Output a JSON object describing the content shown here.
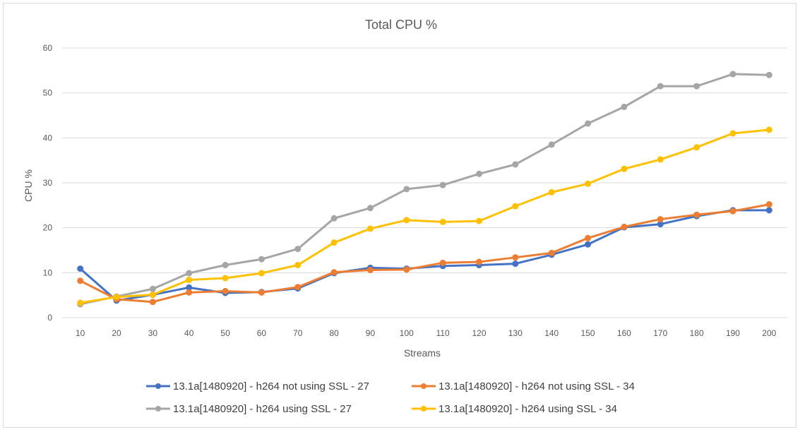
{
  "chart_data": {
    "type": "line",
    "title": "Total CPU %",
    "xlabel": "Streams",
    "ylabel": "CPU %",
    "ylim": [
      0,
      60
    ],
    "yticks": [
      0,
      10,
      20,
      30,
      40,
      50,
      60
    ],
    "grid": true,
    "legend_position": "bottom",
    "categories": [
      "10",
      "20",
      "30",
      "40",
      "50",
      "60",
      "70",
      "80",
      "90",
      "100",
      "110",
      "120",
      "130",
      "140",
      "150",
      "160",
      "170",
      "180",
      "190",
      "200"
    ],
    "series": [
      {
        "name": "13.1a[1480920] - h264 not using SSL - 27",
        "color": "#4472C4",
        "values": [
          10.9,
          3.8,
          5.1,
          6.7,
          5.5,
          5.7,
          6.5,
          9.9,
          11.1,
          10.9,
          11.5,
          11.7,
          12.0,
          14.0,
          16.3,
          20.1,
          20.8,
          22.6,
          23.9,
          23.9
        ]
      },
      {
        "name": "13.1a[1480920] - h264 not using SSL - 34",
        "color": "#ED7D31",
        "values": [
          8.2,
          4.1,
          3.5,
          5.6,
          5.9,
          5.6,
          6.8,
          10.1,
          10.6,
          10.7,
          12.2,
          12.4,
          13.4,
          14.4,
          17.7,
          20.2,
          21.9,
          22.9,
          23.7,
          25.2
        ]
      },
      {
        "name": "13.1a[1480920] - h264 using SSL - 27",
        "color": "#A5A5A5",
        "values": [
          3.0,
          4.7,
          6.4,
          9.9,
          11.7,
          13.0,
          15.3,
          22.1,
          24.4,
          28.6,
          29.5,
          32.0,
          34.1,
          38.5,
          43.2,
          46.9,
          51.5,
          51.5,
          54.2,
          54.0
        ]
      },
      {
        "name": "13.1a[1480920] - h264 using SSL - 34",
        "color": "#FFC000",
        "values": [
          3.3,
          4.6,
          5.1,
          8.4,
          8.8,
          9.9,
          11.7,
          16.7,
          19.8,
          21.7,
          21.3,
          21.5,
          24.8,
          27.9,
          29.8,
          33.1,
          35.2,
          37.9,
          41.0,
          41.8
        ]
      }
    ]
  }
}
